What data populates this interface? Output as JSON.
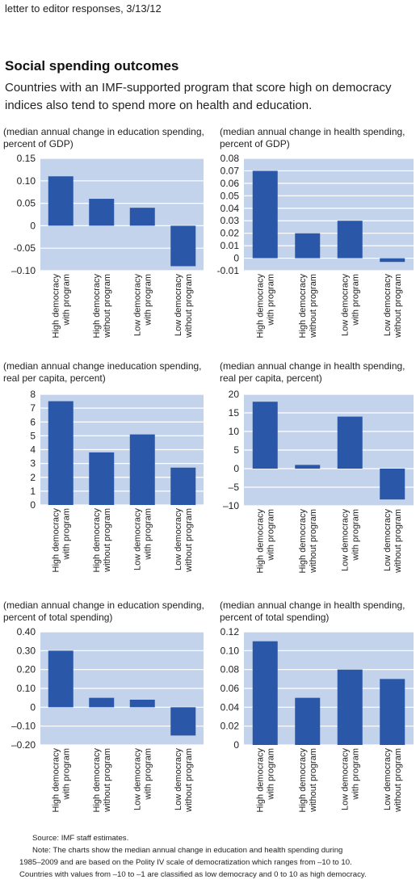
{
  "header": {
    "caption": "letter to editor responses, 3/13/12",
    "title": "Social spending outcomes",
    "subtitle": "Countries with an IMF-supported program that score high on democracy indices also tend to spend more on health and education."
  },
  "colors": {
    "bar": "#2a57a8",
    "plot_bg": "#c4d3ec",
    "grid": "#ffffff"
  },
  "chart_data": [
    {
      "type": "bar",
      "heading": "(median annual change in education spending, percent of GDP)",
      "categories": [
        "High democracy\nwith program",
        "High democracy\nwithout program",
        "Low democracy\nwith program",
        "Low democracy\nwithout program"
      ],
      "values": [
        0.11,
        0.06,
        0.04,
        -0.09
      ],
      "ylim": [
        -0.1,
        0.15
      ],
      "yticks": [
        -0.1,
        -0.05,
        0,
        0.05,
        0.1,
        0.15
      ],
      "yticklabels": [
        "–0.10",
        "-0.05",
        "0",
        "0.05",
        "0.10",
        "0.15"
      ],
      "grid": true
    },
    {
      "type": "bar",
      "heading": "(median annual change in health spending, percent of GDP)",
      "categories": [
        "High democracy\nwith program",
        "High democracy\nwithout program",
        "Low democracy\nwith program",
        "Low democracy\nwithout program"
      ],
      "values": [
        0.07,
        0.02,
        0.03,
        -0.003
      ],
      "ylim": [
        -0.01,
        0.08
      ],
      "yticks": [
        -0.01,
        0,
        0.01,
        0.02,
        0.03,
        0.04,
        0.05,
        0.06,
        0.07,
        0.08
      ],
      "yticklabels": [
        "-0.01",
        "0",
        "0.01",
        "0.02",
        "0.03",
        "0.04",
        "0.05",
        "0.06",
        "0.07",
        "0.08"
      ],
      "grid": true
    },
    {
      "type": "bar",
      "heading": "(median annual change ineducation spending, real per capita, percent)",
      "categories": [
        "High democracy\nwith program",
        "High democracy\nwithout program",
        "Low democracy\nwith program",
        "Low democracy\nwithout program"
      ],
      "values": [
        7.5,
        3.8,
        5.1,
        2.7
      ],
      "ylim": [
        0,
        8
      ],
      "yticks": [
        0,
        1,
        2,
        3,
        4,
        5,
        6,
        7,
        8
      ],
      "yticklabels": [
        "0",
        "1",
        "2",
        "3",
        "4",
        "5",
        "6",
        "7",
        "8"
      ],
      "grid": true
    },
    {
      "type": "bar",
      "heading": "(median annual change in health spending, real per capita, percent)",
      "categories": [
        "High democracy\nwith program",
        "High democracy\nwithout program",
        "Low democracy\nwith program",
        "Low democracy\nwithout program"
      ],
      "values": [
        18,
        1,
        14,
        -8.3
      ],
      "ylim": [
        -10,
        20
      ],
      "yticks": [
        -10,
        -5,
        0,
        5,
        10,
        15,
        20
      ],
      "yticklabels": [
        "–10",
        "–5",
        "0",
        "5",
        "10",
        "15",
        "20"
      ],
      "grid": true
    },
    {
      "type": "bar",
      "heading": "(median annual change in education spending, percent of total spending)",
      "categories": [
        "High democracy\nwith program",
        "High democracy\nwithout program",
        "Low democracy\nwith program",
        "Low democracy\nwithout program"
      ],
      "values": [
        0.3,
        0.05,
        0.04,
        -0.15
      ],
      "ylim": [
        -0.2,
        0.4
      ],
      "yticks": [
        -0.2,
        -0.1,
        0,
        0.1,
        0.2,
        0.3,
        0.4
      ],
      "yticklabels": [
        "–0.20",
        "–0.10",
        "0",
        "0.10",
        "0.20",
        "0.30",
        "0.40"
      ],
      "grid": true
    },
    {
      "type": "bar",
      "heading": "(median annual change in health spending, percent of total spending)",
      "categories": [
        "High democracy\nwith program",
        "High democracy\nwithout program",
        "Low democracy\nwith program",
        "Low democracy\nwithout program"
      ],
      "values": [
        0.11,
        0.05,
        0.08,
        0.07
      ],
      "ylim": [
        0,
        0.12
      ],
      "yticks": [
        0,
        0.02,
        0.04,
        0.06,
        0.08,
        0.1,
        0.12
      ],
      "yticklabels": [
        "0",
        "0.02",
        "0.04",
        "0.06",
        "0.08",
        "0.10",
        "0.12"
      ],
      "grid": true
    }
  ],
  "footnotes": {
    "source": "Source: IMF staff estimates.",
    "note_line1": "Note: The charts show the median annual change in education and health spending during",
    "note_line2": "1985–2009 and are based on the Polity IV scale of democratization which ranges from –10 to 10.",
    "note_line3": "Countries with values  from –10 to –1 are classified as low democracy and 0 to 10 as high democracy."
  }
}
